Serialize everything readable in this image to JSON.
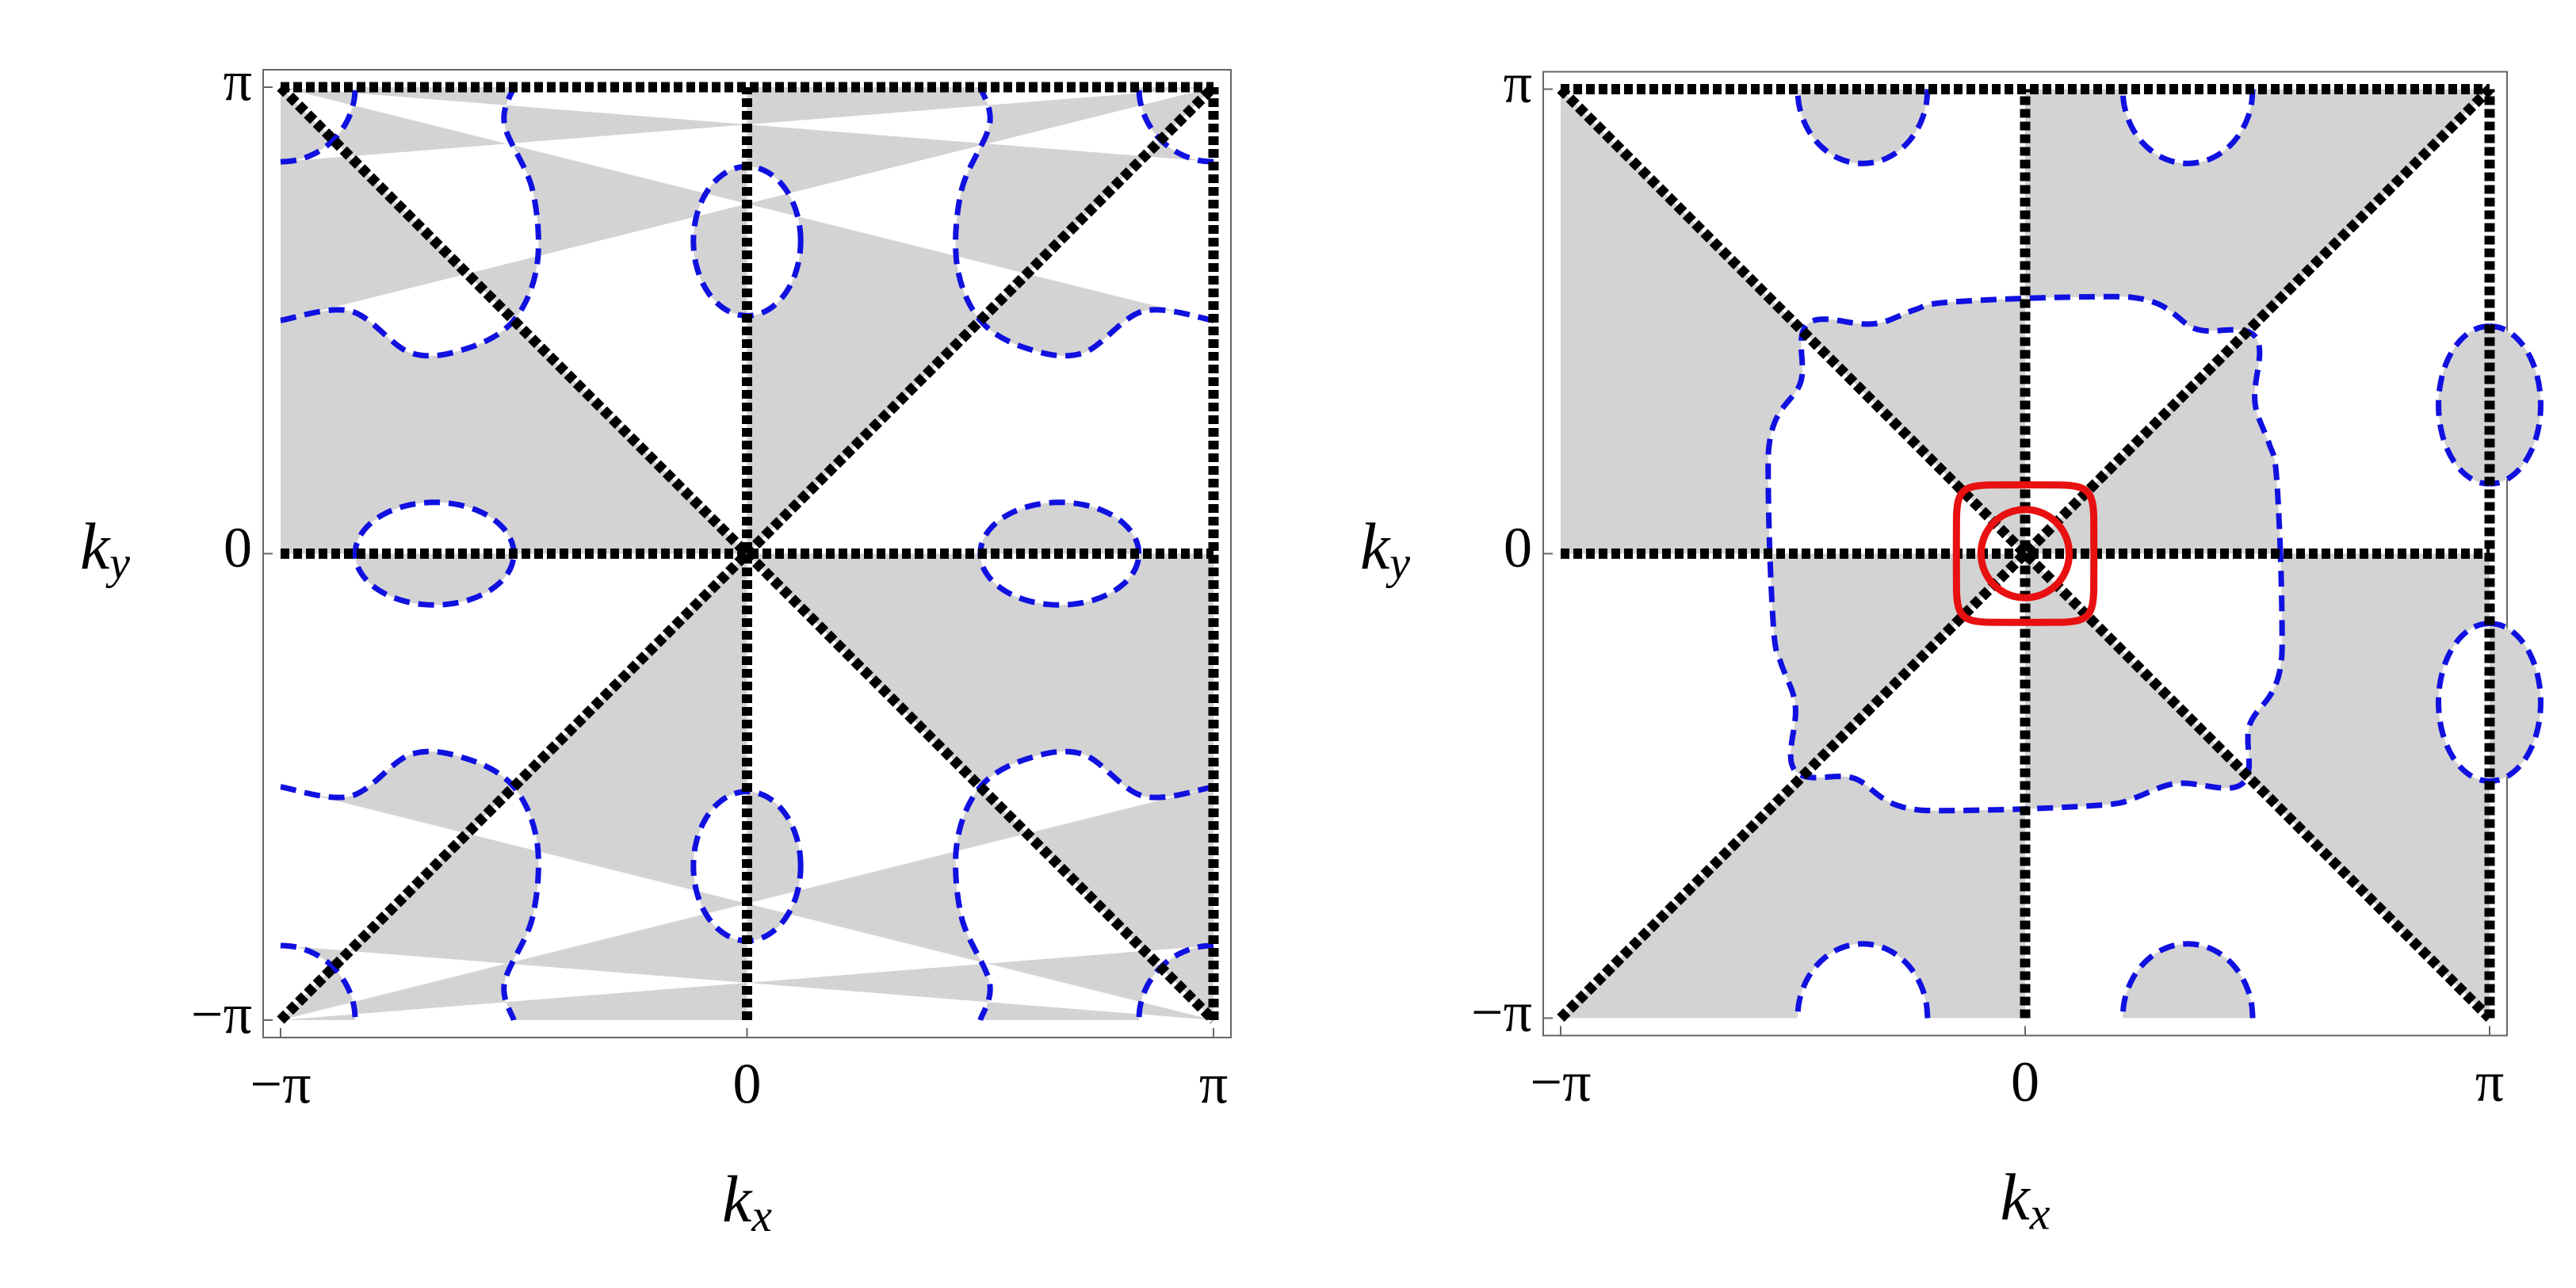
{
  "chart_data": [
    {
      "type": "contour",
      "xlabel": {
        "text": "k",
        "subscript": "x"
      },
      "ylabel": {
        "text": "k",
        "subscript": "y"
      },
      "xlim": [
        -3.1416,
        3.1416
      ],
      "ylim": [
        -3.1416,
        3.1416
      ],
      "xticks": [
        {
          "value": -3.1416,
          "label": "−π"
        },
        0,
        {
          "value": 3.1416,
          "label": "π"
        }
      ],
      "yticks": [
        {
          "value": -3.1416,
          "label": "−π"
        },
        0,
        {
          "value": 3.1416,
          "label": "π"
        }
      ]
    },
    {
      "type": "contour",
      "xlabel": {
        "text": "k",
        "subscript": "x"
      },
      "ylabel": {
        "text": "k",
        "subscript": "y"
      },
      "xlim": [
        -3.1416,
        3.1416
      ],
      "ylim": [
        -3.1416,
        3.1416
      ],
      "xticks": [
        {
          "value": -3.1416,
          "label": "−π"
        },
        0,
        {
          "value": 3.1416,
          "label": "π"
        }
      ],
      "yticks": [
        {
          "value": -3.1416,
          "label": "−π"
        },
        0,
        {
          "value": 3.1416,
          "label": "π"
        }
      ]
    }
  ]
}
